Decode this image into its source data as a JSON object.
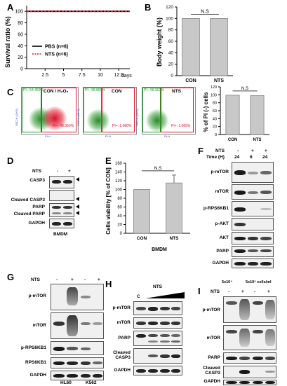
{
  "panels": {
    "A": {
      "label": "A",
      "ylabel": "Survival ratio (%)",
      "xunit": "days",
      "legend": [
        "PBS (n=6)",
        "NTS (n=6)"
      ],
      "chart_data": {
        "type": "line",
        "x": [
          0,
          2.5,
          5,
          7.5,
          10,
          12.5
        ],
        "series": [
          {
            "name": "PBS (n=6)",
            "values": [
              100,
              100,
              100,
              100,
              100,
              100
            ],
            "color": "#000000"
          },
          {
            "name": "NTS (n=6)",
            "values": [
              100,
              100,
              100,
              100,
              100,
              100
            ],
            "color": "#e8102a"
          }
        ],
        "yticks": [
          "0",
          "20",
          "40",
          "60",
          "80",
          "100"
        ],
        "xticks": [
          "2.5",
          "5",
          "7.5",
          "10",
          "12.5"
        ],
        "ylim": [
          0,
          110
        ],
        "xlim": [
          0,
          14
        ]
      }
    },
    "B": {
      "label": "B",
      "ylabel": "Body weight (%)",
      "annotation": "N.S",
      "chart_data": {
        "type": "bar",
        "categories": [
          "CON",
          "NTS"
        ],
        "values": [
          100,
          100
        ],
        "yticks": [
          "0",
          "20",
          "40",
          "60",
          "80",
          "100",
          "120"
        ],
        "ylim": [
          0,
          120
        ]
      }
    },
    "C": {
      "label": "C",
      "flow": [
        {
          "title": "CON / H₂O₂",
          "pi_minus": "PI-: 54.450%",
          "pi_plus": "PI+: 45.350%"
        },
        {
          "title": "CON",
          "pi_minus": "PI-: 98.860%",
          "pi_plus": "PI+: 1.080%"
        },
        {
          "title": "NTS",
          "pi_minus": "PI-: 98.902%",
          "pi_plus": "PI+: 1.065%"
        }
      ],
      "flow_yaxis": "SSC-H (10^3)",
      "flow_xaxis": "PI-H",
      "bar": {
        "ylabel": "% of PI (-) cells",
        "annotation": "N.S",
        "chart_data": {
          "type": "bar",
          "categories": [
            "CON",
            "NTS"
          ],
          "values": [
            99,
            98
          ],
          "yticks": [
            "0",
            "20",
            "40",
            "60",
            "80",
            "100",
            "120"
          ],
          "ylim": [
            0,
            120
          ]
        }
      }
    },
    "D": {
      "label": "D",
      "treatment": "NTS",
      "signs": [
        "-",
        "+"
      ],
      "rows": [
        "CASP3",
        "Cleaved CASP3",
        "PARP",
        "Cleaved PARP",
        "GAPDH"
      ],
      "caption": "BMDM"
    },
    "E": {
      "label": "E",
      "ylabel": "Cells viability [% of CON]",
      "annotation": "N.S",
      "caption": "BMDM",
      "chart_data": {
        "type": "bar",
        "categories": [
          "CON",
          "NTS"
        ],
        "values": [
          100,
          115
        ],
        "errors": [
          0,
          18
        ],
        "yticks": [
          "0",
          "20",
          "40",
          "60",
          "80",
          "100",
          "120",
          "140",
          "160"
        ],
        "ylim": [
          0,
          160
        ]
      }
    },
    "F": {
      "label": "F",
      "treatment": "NTS",
      "signs": [
        "-",
        "+",
        "+"
      ],
      "time_label": "Time (H)",
      "times": [
        "24",
        "6",
        "24"
      ],
      "rows": [
        "p-mTOR",
        "mTOR",
        "p-RPS6KB1",
        "p-AKT",
        "AKT",
        "PARP",
        "GAPDH"
      ]
    },
    "G": {
      "label": "G",
      "treatment": "NTS",
      "signs": [
        "-",
        "+",
        "-",
        "+"
      ],
      "rows": [
        "p-mTOR",
        "mTOR",
        "p-RPS6KB1",
        "RPS6KB1",
        "GAPDH"
      ],
      "captions": [
        "HL60",
        "K562"
      ]
    },
    "H": {
      "label": "H",
      "treatment": "NTS",
      "control": "C",
      "rows": [
        "p-mTOR",
        "mTOR",
        "PARP",
        "Cleaved CASP3",
        "GAPDH"
      ]
    },
    "I": {
      "label": "I",
      "treatment": "NTS",
      "signs": [
        "-",
        "+",
        "-",
        "+"
      ],
      "rows": [
        "p-mTOR",
        "mTOR",
        "PARP",
        "Cleaved CASP3",
        "GAPDH"
      ],
      "captions": [
        "5x10⁴",
        "5x10⁶ cells/ml"
      ]
    }
  }
}
